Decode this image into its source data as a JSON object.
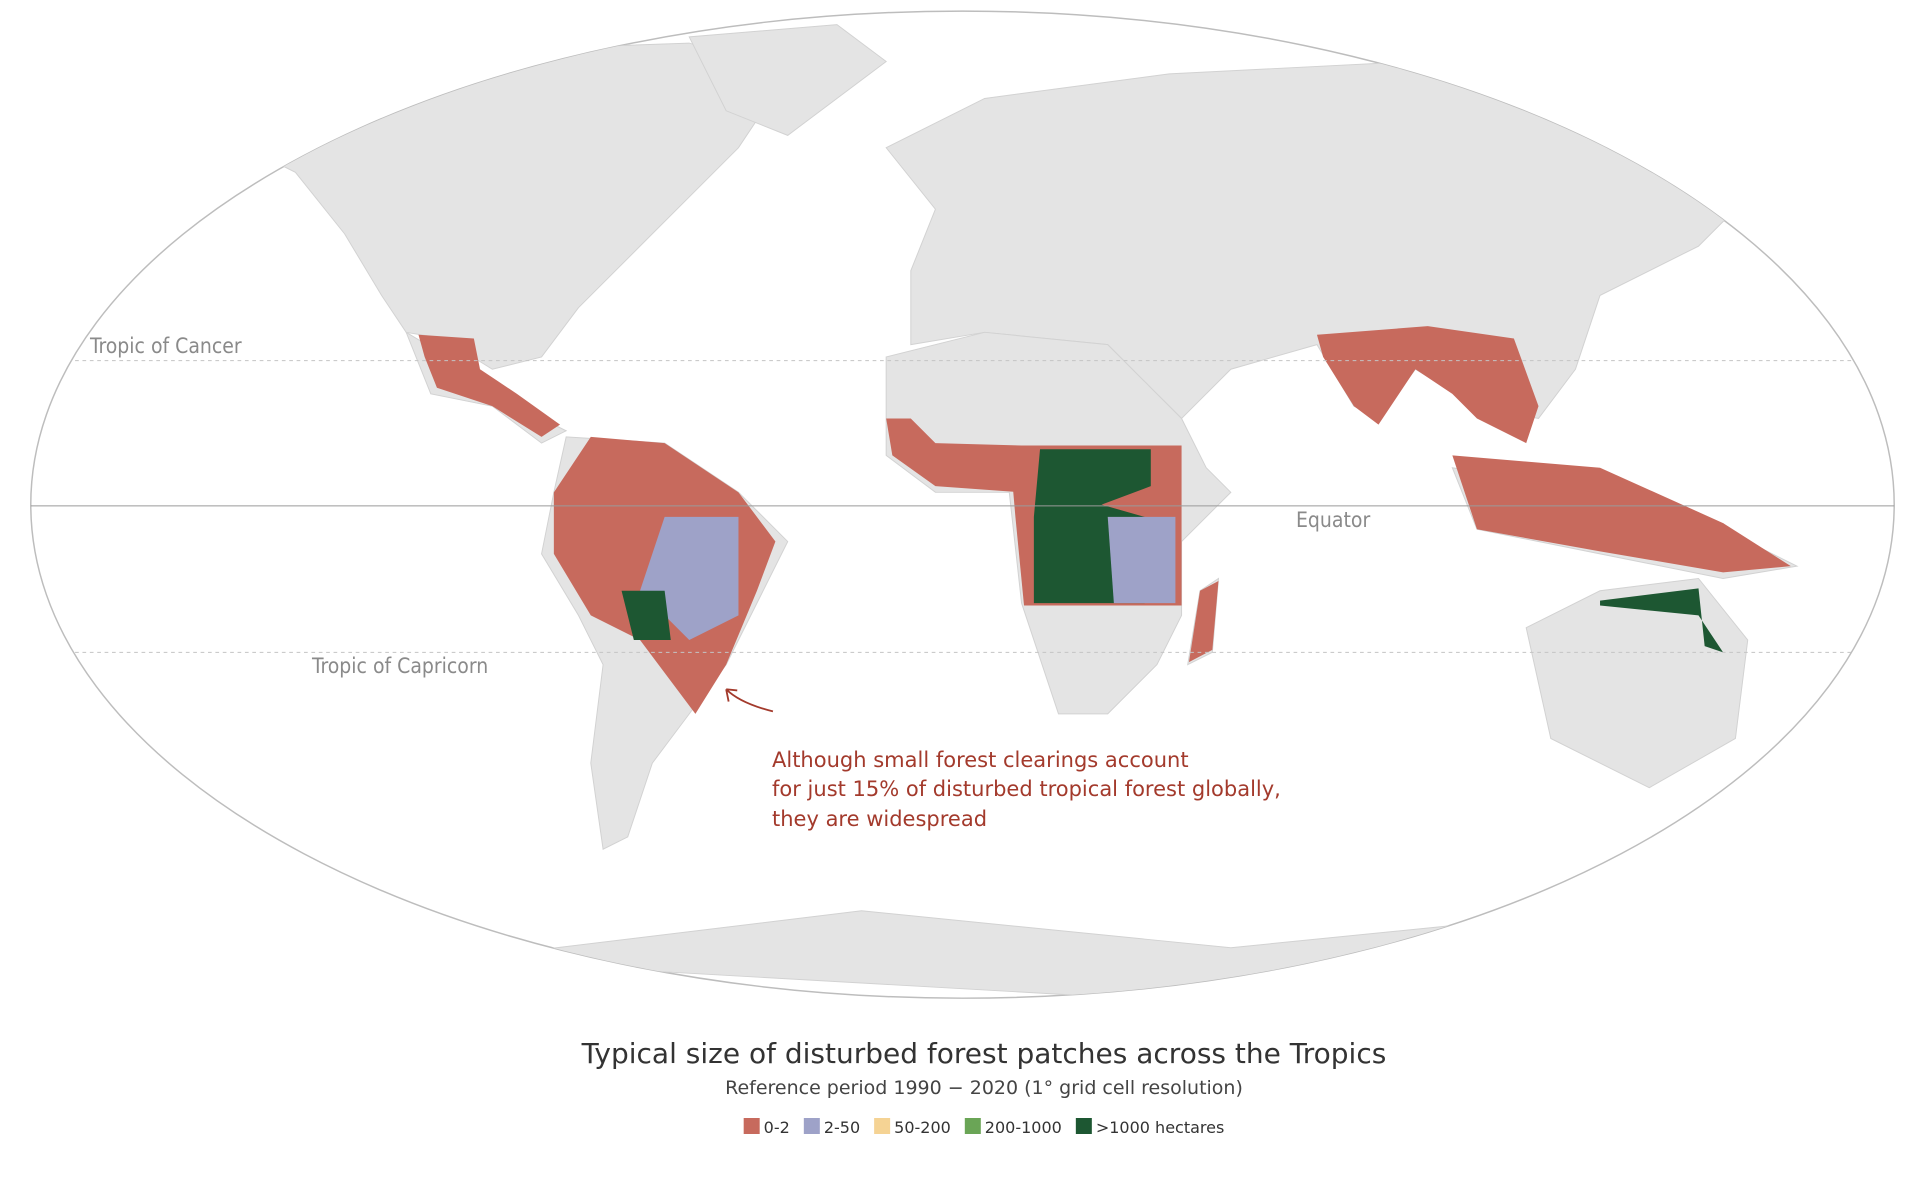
{
  "map": {
    "labels": {
      "tropic_of_cancer": "Tropic of Cancer",
      "equator": "Equator",
      "tropic_of_capricorn": "Tropic of Capricorn"
    },
    "annotation": [
      "Although small forest clearings account",
      "for just 15% of disturbed tropical forest globally,",
      "they are widespread"
    ]
  },
  "title": "Typical size of disturbed forest patches across the Tropics",
  "subtitle": "Reference period 1990 − 2020 (1° grid cell resolution)",
  "legend": [
    {
      "label": "0-2",
      "color": "#c76a5d"
    },
    {
      "label": "2-50",
      "color": "#9ea2c8"
    },
    {
      "label": "50-200",
      "color": "#f5d394"
    },
    {
      "label": "200-1000",
      "color": "#6aa556"
    },
    {
      "label": ">1000 hectares",
      "color": "#1d5732"
    }
  ]
}
